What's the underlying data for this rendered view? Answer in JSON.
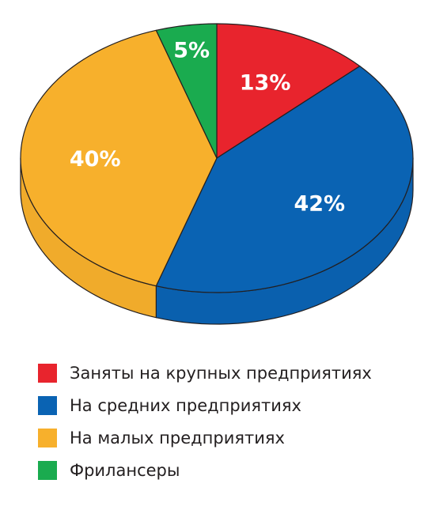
{
  "chart_data": {
    "type": "pie",
    "title": "",
    "start": "top",
    "direction": "clockwise",
    "legend_position": "bottom",
    "slices": [
      {
        "label": "Заняты на крупных предприятиях",
        "value": 13,
        "display": "13%",
        "color": "#e8242d"
      },
      {
        "label": "На средних предприятиях",
        "value": 42,
        "display": "42%",
        "color": "#0a63b3"
      },
      {
        "label": "На малых предприятиях",
        "value": 40,
        "display": "40%",
        "color": "#f7b02c"
      },
      {
        "label": "Фрилансеры",
        "value": 5,
        "display": "5%",
        "color": "#1aab4f"
      }
    ]
  }
}
